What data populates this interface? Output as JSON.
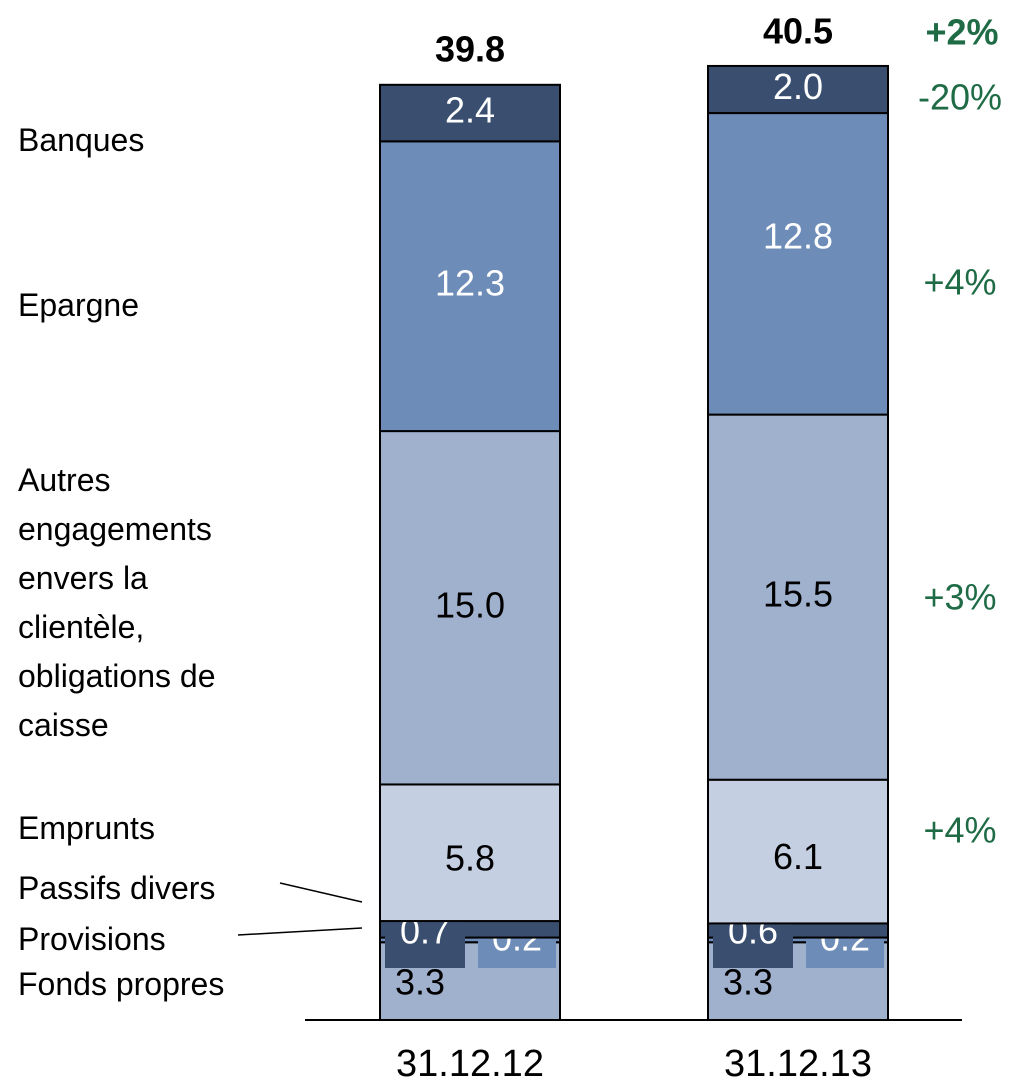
{
  "chart_data": {
    "type": "stacked_bar",
    "categories": [
      "31.12.12",
      "31.12.13"
    ],
    "ylim": [
      0,
      43.3
    ],
    "totals": [
      39.8,
      40.5
    ],
    "total_change": "+2%",
    "series": [
      {
        "name": "Fonds propres",
        "color": "#a0b1ce",
        "label_color": "#000",
        "values": [
          3.3,
          3.3
        ],
        "value_labels": [
          "3.3",
          "3.3"
        ]
      },
      {
        "name": "Provisions",
        "color": "#6e8cb8",
        "label_color": "#fff",
        "values": [
          0.2,
          0.2
        ],
        "value_labels": [
          "0.2",
          "0.2"
        ]
      },
      {
        "name": "Passifs divers",
        "color": "#3a4f70",
        "label_color": "#fff",
        "values": [
          0.7,
          0.6
        ],
        "value_labels": [
          "0.7",
          "0.6"
        ]
      },
      {
        "name": "Emprunts",
        "color": "#c5cfe2",
        "label_color": "#000",
        "values": [
          5.8,
          6.1
        ],
        "value_labels": [
          "5.8",
          "6.1"
        ],
        "change": "+4%"
      },
      {
        "name": "Autres engagements envers la clientèle, obligations de caisse",
        "color": "#a0b1ce",
        "label_color": "#000",
        "values": [
          15.0,
          15.5
        ],
        "value_labels": [
          "15.0",
          "15.5"
        ],
        "change": "+3%"
      },
      {
        "name": "Epargne",
        "color": "#6e8cb8",
        "label_color": "#fff",
        "values": [
          12.3,
          12.8
        ],
        "value_labels": [
          "12.3",
          "12.8"
        ],
        "change": "+4%"
      },
      {
        "name": "Banques",
        "color": "#3a4f70",
        "label_color": "#fff",
        "values": [
          2.4,
          2.0
        ],
        "value_labels": [
          "2.4",
          "2.0"
        ],
        "change": "-20%"
      }
    ]
  }
}
